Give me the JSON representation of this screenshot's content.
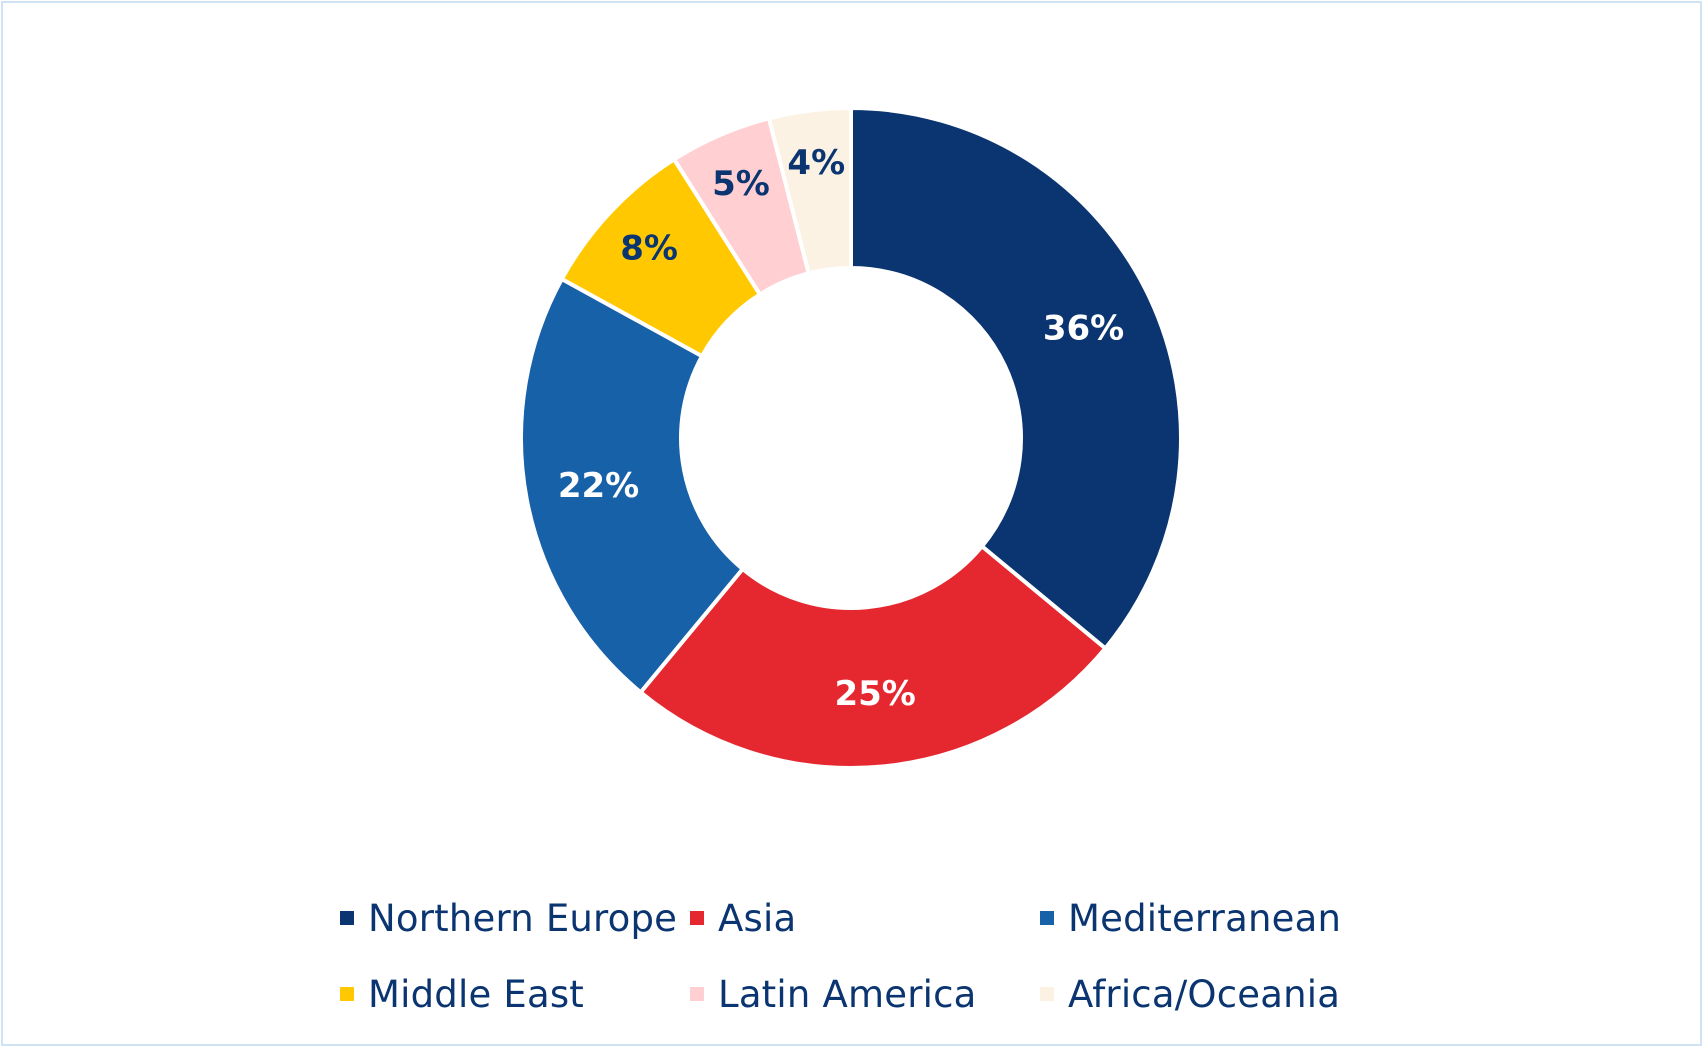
{
  "chart_data": {
    "type": "pie",
    "donut": true,
    "title": "",
    "start_angle_deg": 0,
    "direction": "clockwise",
    "series": [
      {
        "name": "Northern Europe",
        "value": 36,
        "label": "36%",
        "color": "#0b3571",
        "label_color": "#ffffff"
      },
      {
        "name": "Asia",
        "value": 25,
        "label": "25%",
        "color": "#e52830",
        "label_color": "#ffffff"
      },
      {
        "name": "Mediterranean",
        "value": 22,
        "label": "22%",
        "color": "#1761a9",
        "label_color": "#ffffff"
      },
      {
        "name": "Middle East",
        "value": 8,
        "label": "8%",
        "color": "#ffc800",
        "label_color": "#0b3571"
      },
      {
        "name": "Latin America",
        "value": 5,
        "label": "5%",
        "color": "#ffcfd2",
        "label_color": "#0b3571"
      },
      {
        "name": "Africa/Oceania",
        "value": 4,
        "label": "4%",
        "color": "#fcf2e3",
        "label_color": "#0b3571"
      }
    ],
    "legend": {
      "placement": "bottom",
      "items": [
        "Northern Europe",
        "Asia",
        "Mediterranean",
        "Middle East",
        "Latin America",
        "Africa/Oceania"
      ]
    }
  },
  "colors": {
    "border": "#cfe3f5",
    "text": "#0b3571",
    "separator": "#ffffff"
  }
}
